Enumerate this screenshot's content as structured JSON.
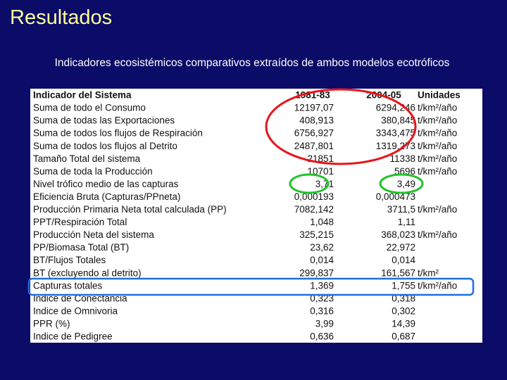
{
  "header": {
    "title": "Resultados",
    "subtitle": "Indicadores ecosistémicos comparativos extraídos de ambos modelos ecotróficos"
  },
  "table": {
    "header": [
      "Indicador del Sistema",
      "1981-83",
      "2004-05",
      "Unidades"
    ],
    "rows": [
      [
        "Suma de todo el Consumo",
        "12197,07",
        "6294,246",
        "t/km²/año"
      ],
      [
        "Suma de todas las Exportaciones",
        "408,913",
        "380,845",
        "t/km²/año"
      ],
      [
        "Suma de todos los flujos de Respiración",
        "6756,927",
        "3343,475",
        "t/km²/año"
      ],
      [
        "Suma de todos los flujos al Detrito",
        "2487,801",
        "1319,273",
        "t/km²/año"
      ],
      [
        "Tamaño Total del sistema",
        "21851",
        "11338",
        "t/km²/año"
      ],
      [
        "Suma de toda la Producción",
        "10701",
        "5696",
        "t/km²/año"
      ],
      [
        "Nivel trófico medio de las capturas",
        "3,71",
        "3,49"
      ],
      [
        "Eficiencia Bruta (Capturas/PPneta)",
        "0,000193",
        "0,000473"
      ],
      [
        "Producción Primaria Neta total calculada (PP)",
        "7082,142",
        "3711,5",
        "t/km²/año"
      ],
      [
        "PPT/Respiración Total",
        "1,048",
        "1,11"
      ],
      [
        "Producción Neta del sistema",
        "325,215",
        "368,023",
        "t/km²/año"
      ],
      [
        "PP/Biomasa Total (BT)",
        "23,62",
        "22,972"
      ],
      [
        "BT/Flujos Totales",
        "0,014",
        "0,014"
      ],
      [
        "BT (excluyendo al detrito)",
        "299,837",
        "161,567",
        "t/km²"
      ],
      [
        "Capturas totales",
        "1,369",
        "1,755",
        "t/km²/año"
      ],
      [
        "Indice de Conectancia",
        "0,323",
        "0,318"
      ],
      [
        "Indice de Omnivoria",
        "0,316",
        "0,302"
      ],
      [
        "PPR (%)",
        "3,99",
        "14,39"
      ],
      [
        "Indice de Pedigree",
        "0,636",
        "0,687"
      ]
    ]
  }
}
